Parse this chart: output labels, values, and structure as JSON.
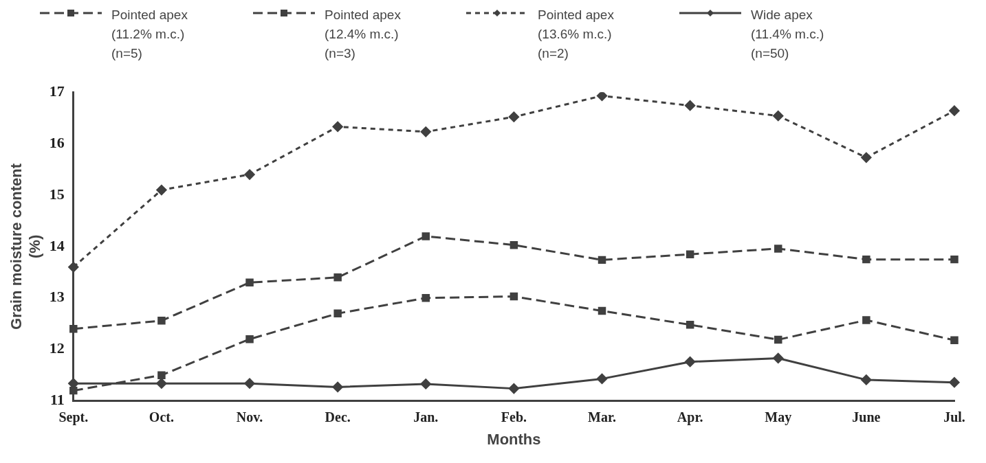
{
  "chart_data": {
    "type": "line",
    "xlabel": "Months",
    "ylabel": "Grain moisture content\n(%)",
    "categories": [
      "Sept.",
      "Oct.",
      "Nov.",
      "Dec.",
      "Jan.",
      "Feb.",
      "Mar.",
      "Apr.",
      "May",
      "June",
      "Jul."
    ],
    "series": [
      {
        "name": "Pointed apex\n(11.2% m.c.)\n(n=5)",
        "color": "#404040",
        "marker": "square",
        "line_style": "dashed",
        "values": [
          11.2,
          11.5,
          12.2,
          12.7,
          13.0,
          13.03,
          12.75,
          12.48,
          12.19,
          12.57,
          12.18
        ]
      },
      {
        "name": "Pointed apex\n(12.4% m.c.)\n(n=3)",
        "color": "#404040",
        "marker": "square",
        "line_style": "dashed",
        "values": [
          12.4,
          12.56,
          13.3,
          13.4,
          14.2,
          14.03,
          13.74,
          13.85,
          13.96,
          13.75,
          13.75
        ]
      },
      {
        "name": "Pointed apex\n(13.6% m.c.)\n(n=2)",
        "color": "#404040",
        "marker": "diamond",
        "line_style": "dotted",
        "values": [
          13.6,
          15.1,
          15.4,
          16.33,
          16.23,
          16.52,
          16.93,
          16.74,
          16.54,
          15.73,
          16.64
        ]
      },
      {
        "name": "Wide apex\n(11.4% m.c.)\n(n=50)",
        "color": "#404040",
        "marker": "diamond",
        "line_style": "solid",
        "values": [
          11.34,
          11.34,
          11.34,
          11.27,
          11.33,
          11.24,
          11.43,
          11.76,
          11.83,
          11.41,
          11.36
        ]
      }
    ],
    "ylim": [
      11,
      17
    ],
    "yticks": [
      11,
      12,
      13,
      14,
      15,
      16,
      17
    ],
    "grid": false,
    "legend": "top"
  }
}
